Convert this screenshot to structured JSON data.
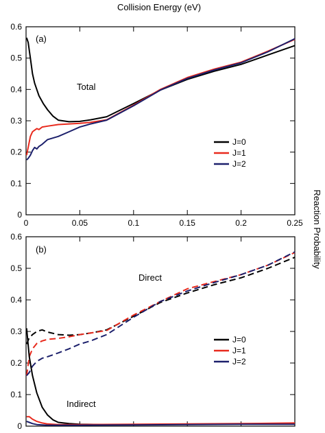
{
  "figure": {
    "xlabel": "Collision Energy (eV)",
    "ylabel": "Reaction Probability"
  },
  "chart_data": [
    {
      "type": "line",
      "panel_label": "(a)",
      "xlim": [
        0,
        0.25
      ],
      "ylim": [
        0,
        0.6
      ],
      "xticks": [
        "0",
        "0.05",
        "0.1",
        "0.15",
        "0.2",
        "0.25"
      ],
      "yticks": [
        "0",
        "0.1",
        "0.2",
        "0.3",
        "0.4",
        "0.5",
        "0.6"
      ],
      "grid": false,
      "legend_position": "right-middle",
      "annotations": [
        {
          "text": "Total",
          "x": 0.06,
          "y": 0.44
        }
      ],
      "series": [
        {
          "name": "J=0",
          "color": "#000000",
          "style": "solid",
          "x": [
            0.0005,
            0.002,
            0.004,
            0.006,
            0.008,
            0.012,
            0.016,
            0.02,
            0.025,
            0.03,
            0.04,
            0.05,
            0.06,
            0.075,
            0.1,
            0.125,
            0.15,
            0.175,
            0.2,
            0.225,
            0.25
          ],
          "y": [
            0.565,
            0.55,
            0.5,
            0.45,
            0.42,
            0.38,
            0.355,
            0.335,
            0.315,
            0.302,
            0.297,
            0.298,
            0.303,
            0.313,
            0.355,
            0.398,
            0.432,
            0.458,
            0.48,
            0.51,
            0.54
          ]
        },
        {
          "name": "J=1",
          "color": "#e8291c",
          "style": "solid",
          "x": [
            0.0005,
            0.002,
            0.004,
            0.006,
            0.008,
            0.01,
            0.012,
            0.015,
            0.02,
            0.03,
            0.04,
            0.05,
            0.06,
            0.075,
            0.1,
            0.125,
            0.15,
            0.175,
            0.2,
            0.225,
            0.25
          ],
          "y": [
            0.19,
            0.215,
            0.25,
            0.265,
            0.27,
            0.275,
            0.272,
            0.28,
            0.283,
            0.288,
            0.29,
            0.292,
            0.295,
            0.303,
            0.35,
            0.4,
            0.438,
            0.465,
            0.487,
            0.522,
            0.56
          ]
        },
        {
          "name": "J=2",
          "color": "#1b1f6b",
          "style": "solid",
          "x": [
            0.0005,
            0.002,
            0.004,
            0.006,
            0.008,
            0.01,
            0.012,
            0.015,
            0.02,
            0.03,
            0.04,
            0.05,
            0.06,
            0.075,
            0.1,
            0.125,
            0.15,
            0.175,
            0.2,
            0.225,
            0.25
          ],
          "y": [
            0.175,
            0.18,
            0.19,
            0.205,
            0.215,
            0.21,
            0.218,
            0.225,
            0.24,
            0.25,
            0.265,
            0.28,
            0.29,
            0.302,
            0.348,
            0.398,
            0.435,
            0.462,
            0.485,
            0.52,
            0.562
          ]
        }
      ]
    },
    {
      "type": "line",
      "panel_label": "(b)",
      "xlim": [
        0,
        0.25
      ],
      "ylim": [
        0,
        0.6
      ],
      "xticks": [
        "0",
        "0.05",
        "0.1",
        "0.15",
        "0.2",
        "0.25"
      ],
      "yticks": [
        "0",
        "0.1",
        "0.2",
        "0.3",
        "0.4",
        "0.5",
        "0.6"
      ],
      "grid": false,
      "legend_position": "right-middle",
      "annotations": [
        {
          "text": "Direct",
          "x": 0.115,
          "y": 0.475
        },
        {
          "text": "Indirect",
          "x": 0.04,
          "y": 0.045
        }
      ],
      "series": [
        {
          "name": "J=0 (Direct)",
          "color": "#000000",
          "style": "dashed",
          "x": [
            0.0005,
            0.003,
            0.006,
            0.01,
            0.015,
            0.02,
            0.03,
            0.04,
            0.05,
            0.06,
            0.075,
            0.1,
            0.125,
            0.15,
            0.175,
            0.2,
            0.225,
            0.25
          ],
          "y": [
            0.26,
            0.28,
            0.29,
            0.3,
            0.305,
            0.298,
            0.29,
            0.288,
            0.29,
            0.295,
            0.305,
            0.348,
            0.392,
            0.422,
            0.448,
            0.47,
            0.5,
            0.535
          ]
        },
        {
          "name": "J=1 (Direct)",
          "color": "#e8291c",
          "style": "dashed",
          "x": [
            0.0005,
            0.003,
            0.006,
            0.01,
            0.015,
            0.02,
            0.03,
            0.04,
            0.05,
            0.06,
            0.075,
            0.1,
            0.125,
            0.15,
            0.175,
            0.2,
            0.225,
            0.25
          ],
          "y": [
            0.16,
            0.22,
            0.245,
            0.262,
            0.27,
            0.275,
            0.278,
            0.283,
            0.29,
            0.295,
            0.303,
            0.352,
            0.395,
            0.435,
            0.458,
            0.48,
            0.51,
            0.55
          ]
        },
        {
          "name": "J=2 (Direct)",
          "color": "#1b1f6b",
          "style": "dashed",
          "x": [
            0.0005,
            0.003,
            0.006,
            0.01,
            0.015,
            0.02,
            0.03,
            0.04,
            0.05,
            0.06,
            0.075,
            0.1,
            0.125,
            0.15,
            0.175,
            0.2,
            0.225,
            0.25
          ],
          "y": [
            0.16,
            0.17,
            0.19,
            0.205,
            0.215,
            0.22,
            0.232,
            0.245,
            0.26,
            0.27,
            0.29,
            0.345,
            0.395,
            0.428,
            0.455,
            0.48,
            0.51,
            0.552
          ]
        },
        {
          "name": "J=0 (Indirect)",
          "color": "#000000",
          "style": "solid",
          "x": [
            0.0005,
            0.003,
            0.006,
            0.01,
            0.015,
            0.02,
            0.025,
            0.03,
            0.04,
            0.05,
            0.075,
            0.1,
            0.15,
            0.2,
            0.25
          ],
          "y": [
            0.31,
            0.22,
            0.16,
            0.105,
            0.06,
            0.035,
            0.02,
            0.012,
            0.008,
            0.006,
            0.005,
            0.005,
            0.006,
            0.007,
            0.008
          ]
        },
        {
          "name": "J=1 (Indirect)",
          "color": "#e8291c",
          "style": "solid",
          "x": [
            0.0005,
            0.003,
            0.006,
            0.01,
            0.015,
            0.02,
            0.03,
            0.05,
            0.1,
            0.15,
            0.2,
            0.25
          ],
          "y": [
            0.03,
            0.03,
            0.022,
            0.015,
            0.01,
            0.007,
            0.005,
            0.005,
            0.006,
            0.007,
            0.008,
            0.01
          ]
        },
        {
          "name": "J=2 (Indirect)",
          "color": "#1b1f6b",
          "style": "solid",
          "x": [
            0.0005,
            0.003,
            0.006,
            0.01,
            0.015,
            0.02,
            0.03,
            0.05,
            0.1,
            0.15,
            0.2,
            0.25
          ],
          "y": [
            0.015,
            0.012,
            0.008,
            0.005,
            0.004,
            0.003,
            0.003,
            0.003,
            0.004,
            0.005,
            0.006,
            0.006
          ]
        }
      ],
      "legend_entries": [
        {
          "name": "J=0",
          "color": "#000000"
        },
        {
          "name": "J=1",
          "color": "#e8291c"
        },
        {
          "name": "J=2",
          "color": "#1b1f6b"
        }
      ]
    }
  ]
}
